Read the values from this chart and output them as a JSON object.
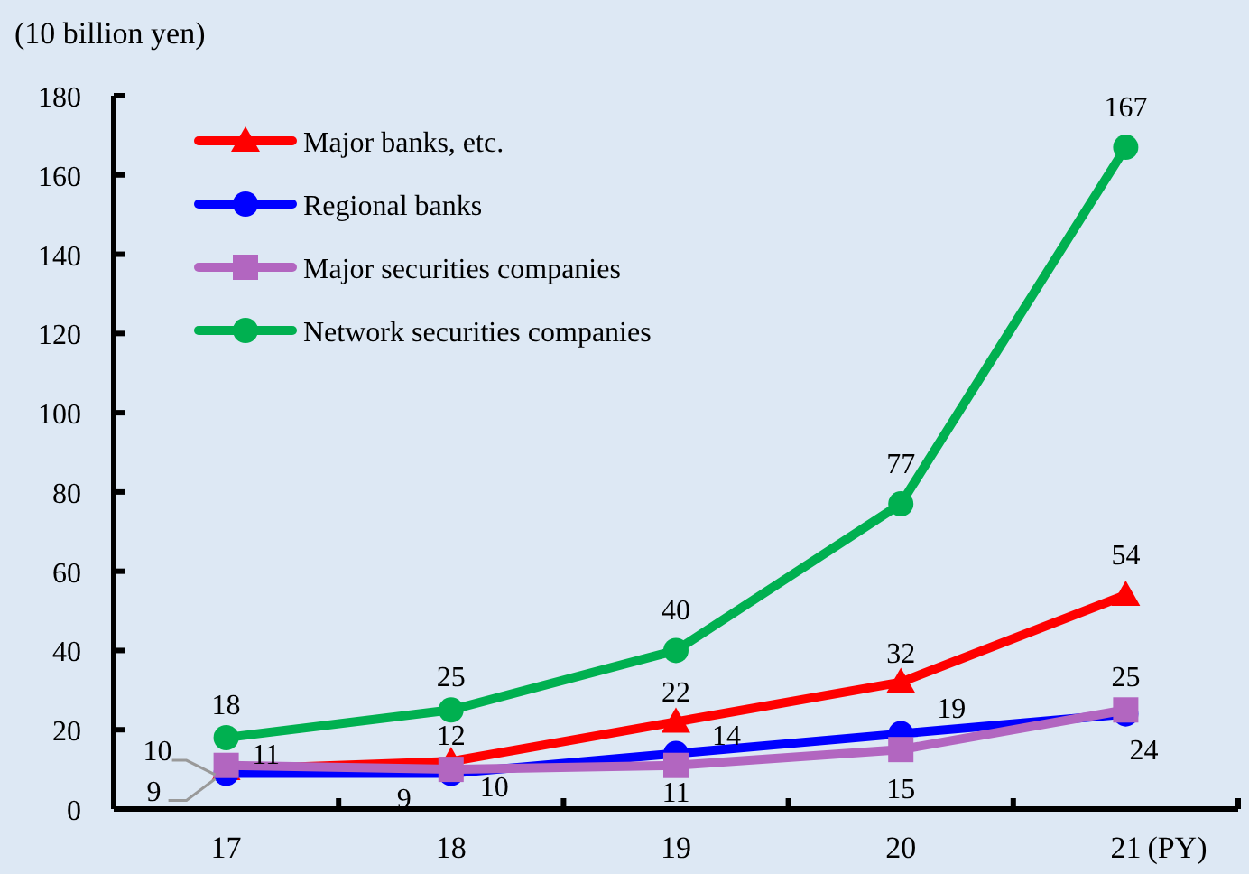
{
  "chart_data": {
    "type": "line",
    "ylabel": "(10 billion yen)",
    "xlabel": "(PY)",
    "categories": [
      "17",
      "18",
      "19",
      "20",
      "21"
    ],
    "ylim": [
      0,
      180
    ],
    "yticks": [
      0,
      20,
      40,
      60,
      80,
      100,
      120,
      140,
      160,
      180
    ],
    "grid": false,
    "legend": "top left",
    "data_labels": true,
    "line_style": "solid",
    "series": [
      {
        "name": "Major banks, etc.",
        "color": "#ff0000",
        "marker": "triangle",
        "values": [
          10,
          12,
          22,
          32,
          54
        ]
      },
      {
        "name": "Regional banks",
        "color": "#0000ff",
        "marker": "circle",
        "values": [
          9,
          9,
          14,
          19,
          24
        ]
      },
      {
        "name": "Major securities companies",
        "color": "#b266c0",
        "marker": "square",
        "values": [
          11,
          10,
          11,
          15,
          25
        ]
      },
      {
        "name": "Network securities companies",
        "color": "#00b050",
        "marker": "circle",
        "values": [
          18,
          25,
          40,
          77,
          167
        ]
      }
    ]
  }
}
